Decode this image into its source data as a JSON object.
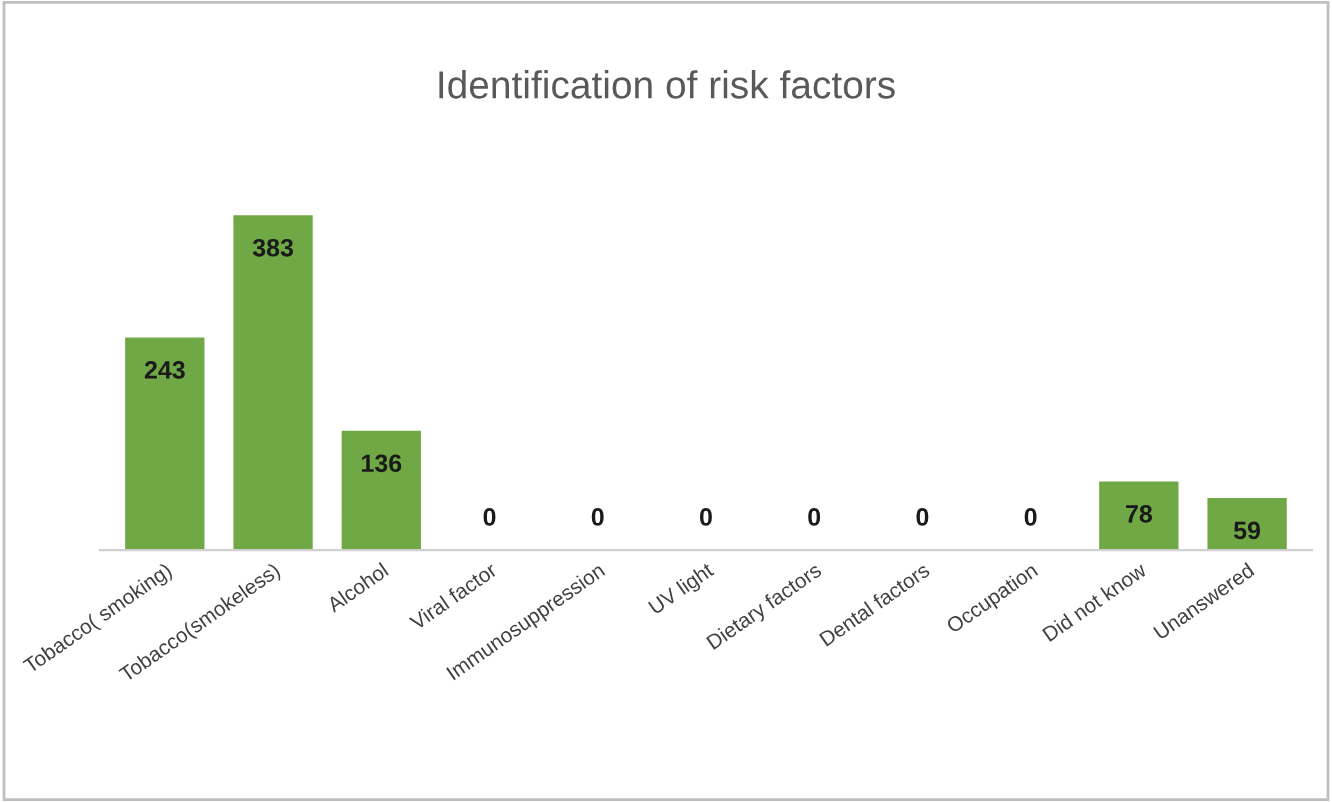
{
  "chart_data": {
    "type": "bar",
    "title": "Identification of risk factors",
    "categories": [
      "Tobacco( smoking)",
      "Tobacco(smokeless)",
      "Alcohol",
      "Viral factor",
      "Immunosuppression",
      "UV light",
      "Dietary factors",
      "Dental factors",
      "Occupation",
      "Did not know",
      "Unanswered"
    ],
    "values": [
      243,
      383,
      136,
      0,
      0,
      0,
      0,
      0,
      0,
      78,
      59
    ],
    "color": "#6fa844",
    "data_labels": true,
    "grid": false,
    "legend": false
  }
}
